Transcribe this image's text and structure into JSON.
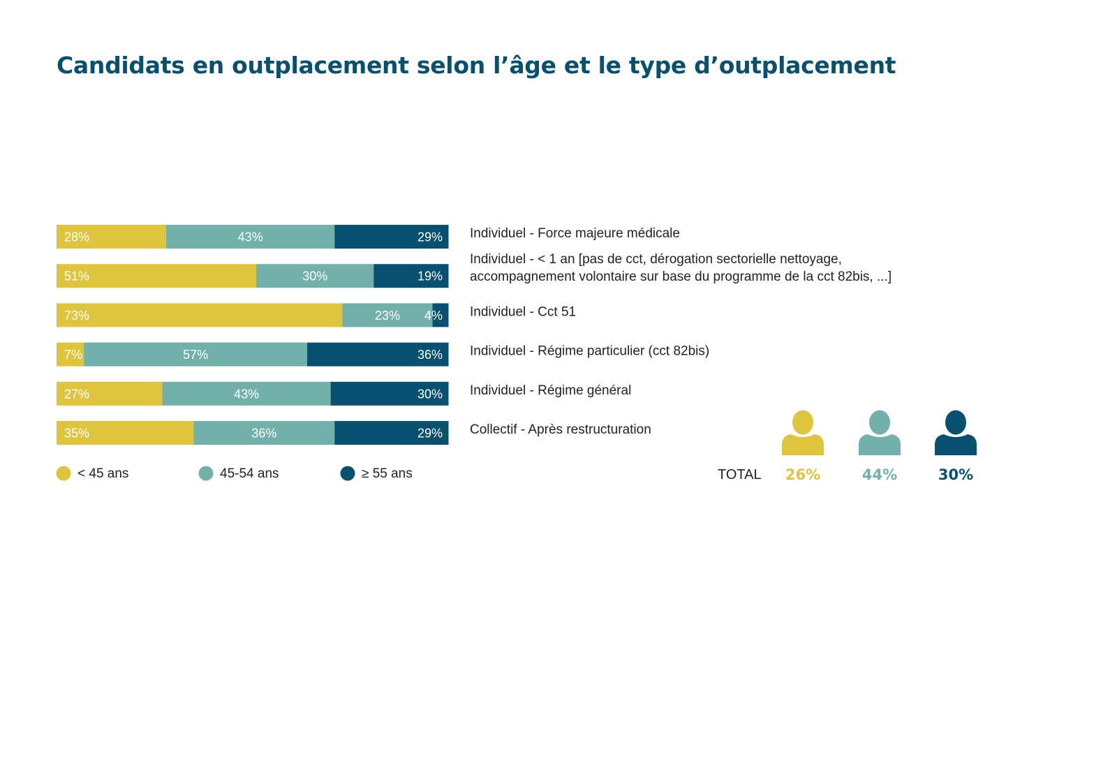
{
  "title": "Candidats en outplacement selon l’âge et le type d’outplacement",
  "colors": {
    "under45": "#dfc43e",
    "age45_54": "#72b1a9",
    "over55": "#08506f"
  },
  "chart_data": {
    "type": "bar",
    "orientation": "horizontal",
    "stacked": true,
    "normalized_percent": true,
    "categories": [
      [
        "Individuel - Force majeure médicale"
      ],
      [
        "Individuel - < 1 an [pas de cct, dérogation sectorielle nettoyage,",
        "accompagnement volontaire sur base du programme de la cct 82bis, ...]"
      ],
      [
        "Individuel - Cct 51"
      ],
      [
        "Individuel - Régime particulier (cct 82bis)"
      ],
      [
        "Individuel - Régime général"
      ],
      [
        "Collectif - Après restructuration"
      ]
    ],
    "series": [
      {
        "name": "< 45 ans",
        "color": "#dfc43e",
        "values": [
          28,
          51,
          73,
          7,
          27,
          35
        ]
      },
      {
        "name": "45-54 ans",
        "color": "#72b1a9",
        "values": [
          43,
          30,
          23,
          57,
          43,
          36
        ]
      },
      {
        "name": "≥ 55 ans",
        "color": "#08506f",
        "values": [
          29,
          19,
          4,
          36,
          30,
          29
        ]
      }
    ],
    "value_suffix": "%",
    "legend_position": "bottom",
    "grid": false,
    "total": {
      "label": "TOTAL",
      "values": [
        {
          "series": "< 45 ans",
          "value": 26,
          "color": "#dfc43e",
          "icon": "person-icon"
        },
        {
          "series": "45-54 ans",
          "value": 44,
          "color": "#72b1a9",
          "icon": "person-icon"
        },
        {
          "series": "≥ 55 ans",
          "value": 30,
          "color": "#08506f",
          "icon": "person-icon"
        }
      ]
    }
  }
}
